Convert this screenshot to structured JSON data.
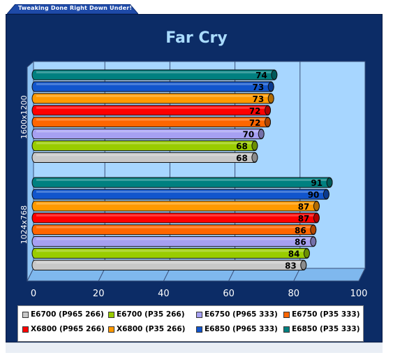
{
  "banner": {
    "text": "Tweaking Done Right Down Under!"
  },
  "colors": {
    "frame": "#0c2c66",
    "plot_back": "#a7d6ff",
    "plot_floor": "#7fb8ee",
    "title": "#aadcff"
  },
  "chart_data": {
    "type": "bar",
    "orientation": "horizontal",
    "title": "Far Cry",
    "xlabel": "",
    "ylabel": "",
    "xlim": [
      0,
      100
    ],
    "ticks": [
      0,
      20,
      40,
      60,
      80,
      100
    ],
    "grid": true,
    "legend_position": "bottom",
    "categories": [
      "1600x1200",
      "1024x768"
    ],
    "series": [
      {
        "name": "E6700 (P965 266)",
        "color": "#c8c8c8",
        "values": [
          68,
          83
        ]
      },
      {
        "name": "E6700 (P35 266)",
        "color": "#99cc00",
        "values": [
          68,
          84
        ]
      },
      {
        "name": "E6750 (P965 333)",
        "color": "#a6a0f2",
        "values": [
          70,
          86
        ]
      },
      {
        "name": "E6750 (P35 333)",
        "color": "#ff6600",
        "values": [
          72,
          86
        ]
      },
      {
        "name": "X6800 (P965 266)",
        "color": "#ff0000",
        "values": [
          72,
          87
        ]
      },
      {
        "name": "X6800 (P35 266)",
        "color": "#ff9900",
        "values": [
          73,
          87
        ]
      },
      {
        "name": "E6850 (P965 333)",
        "color": "#1155cc",
        "values": [
          73,
          90
        ]
      },
      {
        "name": "E6850 (P35 333)",
        "color": "#008080",
        "values": [
          74,
          91
        ]
      }
    ]
  }
}
